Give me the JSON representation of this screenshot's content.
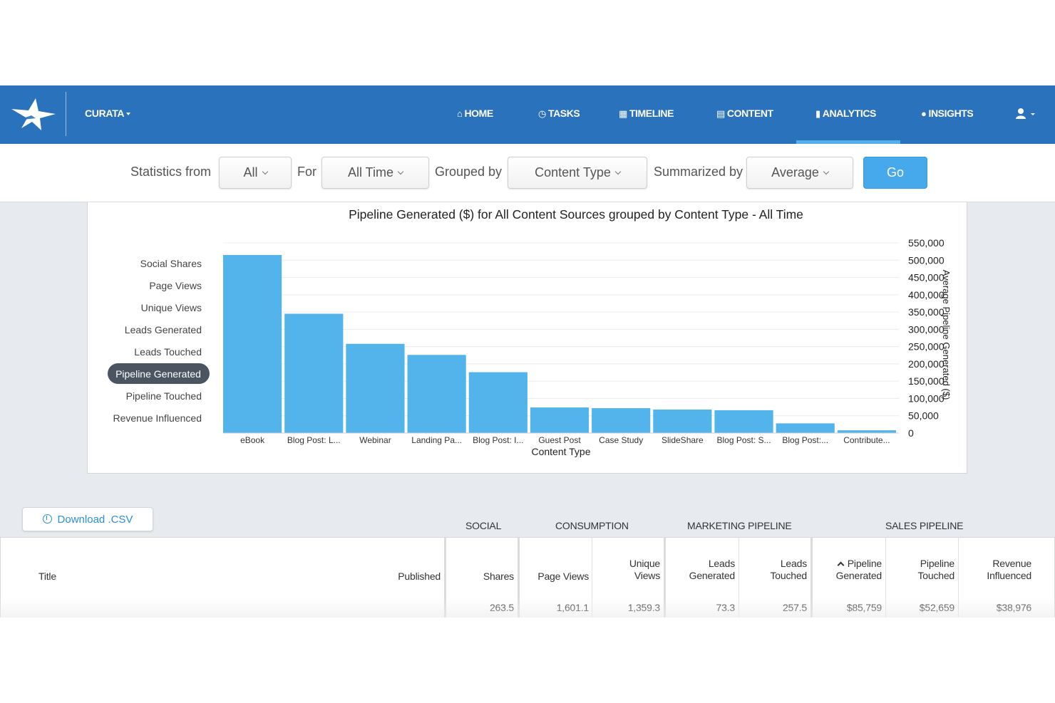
{
  "nav": {
    "brand": "CURATA",
    "items": [
      {
        "id": "home",
        "label": "HOME",
        "icon": "home-icon"
      },
      {
        "id": "tasks",
        "label": "TASKS",
        "icon": "clock-icon"
      },
      {
        "id": "timeline",
        "label": "TIMELINE",
        "icon": "calendar-icon"
      },
      {
        "id": "content",
        "label": "CONTENT",
        "icon": "list-icon"
      },
      {
        "id": "analytics",
        "label": "ANALYTICS",
        "icon": "bar-chart-icon",
        "active": true
      },
      {
        "id": "insights",
        "label": "INSIGHTS",
        "icon": "lightbulb-icon"
      }
    ],
    "colors": {
      "bar": "#2b72bd",
      "active_indicator": "#55b0ea"
    }
  },
  "filters": {
    "statistics_label": "Statistics from",
    "statistics_value": "All",
    "for_label": "For",
    "for_value": "All Time",
    "grouped_label": "Grouped by",
    "grouped_value": "Content Type",
    "summarized_label": "Summarized by",
    "summarized_value": "Average",
    "go_label": "Go"
  },
  "metrics": [
    {
      "label": "Social Shares",
      "selected": false
    },
    {
      "label": "Page Views",
      "selected": false
    },
    {
      "label": "Unique Views",
      "selected": false
    },
    {
      "label": "Leads Generated",
      "selected": false
    },
    {
      "label": "Leads Touched",
      "selected": false
    },
    {
      "label": "Pipeline Generated",
      "selected": true
    },
    {
      "label": "Pipeline Touched",
      "selected": false
    },
    {
      "label": "Revenue Influenced",
      "selected": false
    }
  ],
  "chart_data": {
    "type": "bar",
    "title": "Pipeline Generated ($) for All Content Sources grouped by Content Type - All Time",
    "xlabel": "Content Type",
    "ylabel": "Average Pipeline Generated ($)",
    "ylim": [
      0,
      550000
    ],
    "yticks": [
      "0",
      "50,000",
      "100,000",
      "150,000",
      "200,000",
      "250,000",
      "300,000",
      "350,000",
      "400,000",
      "450,000",
      "500,000",
      "550,000"
    ],
    "y_axis_side": "right",
    "grid": true,
    "color": "#52b4ea",
    "categories": [
      "eBook",
      "Blog Post: L...",
      "Webinar",
      "Landing Pa...",
      "Blog Post: I...",
      "Guest Post",
      "Case Study",
      "SlideShare",
      "Blog Post: S...",
      "Blog Post:...",
      "Contribute..."
    ],
    "values": [
      515000,
      345000,
      258000,
      226000,
      176000,
      74000,
      72000,
      68000,
      66000,
      28000,
      8000
    ]
  },
  "download_label": "Download .CSV",
  "table": {
    "groups": [
      "SOCIAL",
      "CONSUMPTION",
      "MARKETING PIPELINE",
      "SALES PIPELINE"
    ],
    "headers": {
      "title": "Title",
      "published": "Published",
      "shares": "Shares",
      "page_views": "Page Views",
      "unique_views": [
        "Unique",
        "Views"
      ],
      "leads_generated": [
        "Leads",
        "Generated"
      ],
      "leads_touched": [
        "Leads",
        "Touched"
      ],
      "pipeline_generated": [
        "Pipeline",
        "Generated"
      ],
      "pipeline_touched": [
        "Pipeline",
        "Touched"
      ],
      "revenue_influenced": [
        "Revenue",
        "Influenced"
      ]
    },
    "summary_row": {
      "shares": "263.5",
      "page_views": "1,601.1",
      "unique_views": "1,359.3",
      "leads_generated": "73.3",
      "leads_touched": "257.5",
      "pipeline_generated": "$85,759",
      "pipeline_touched": "$52,659",
      "revenue_influenced": "$38,976"
    }
  }
}
